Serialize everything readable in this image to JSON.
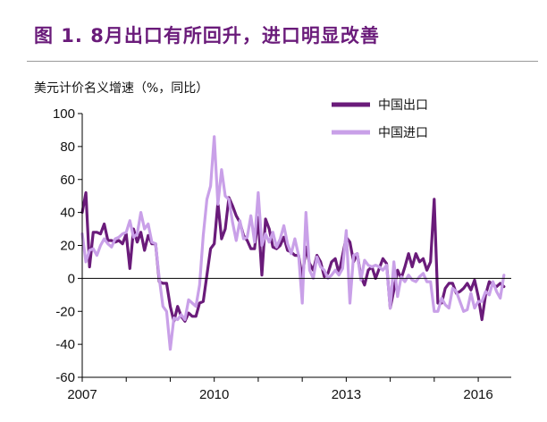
{
  "figure": {
    "title": "图 1.   8月出口有所回升，进口明显改善"
  },
  "chart_data": {
    "type": "line",
    "ylabel": "美元计价名义增速（%，同比）",
    "xlabel": "",
    "xlim": [
      2007,
      2016.75
    ],
    "ylim": [
      -60,
      100
    ],
    "yticks": [
      "100",
      "80",
      "60",
      "40",
      "20",
      "0",
      "-20",
      "-40",
      "-60"
    ],
    "xticks": [
      "2007",
      "2010",
      "2013",
      "2016"
    ],
    "grid": false,
    "legend_position": "top-right",
    "x_start": "2007-01",
    "x_step": "monthly",
    "series": [
      {
        "name": "中国出口",
        "color": "#6a1b7a",
        "values": [
          40,
          52,
          7,
          28,
          28,
          27,
          33,
          23,
          23,
          22,
          23,
          21,
          27,
          6,
          30,
          22,
          28,
          17,
          26,
          21,
          21,
          -2,
          -3,
          -3,
          -17,
          -26,
          -17,
          -23,
          -26,
          -21,
          -23,
          -23,
          -15,
          -14,
          2,
          18,
          21,
          46,
          24,
          30,
          49,
          44,
          38,
          34,
          26,
          23,
          18,
          18,
          37,
          2,
          36,
          30,
          19,
          18,
          20,
          25,
          17,
          16,
          14,
          14,
          0,
          19,
          9,
          5,
          14,
          10,
          1,
          3,
          10,
          12,
          3,
          14,
          25,
          22,
          10,
          15,
          1,
          -4,
          5,
          7,
          0,
          6,
          12,
          9,
          -18,
          -7,
          5,
          0,
          7,
          15,
          7,
          15,
          10,
          12,
          5,
          10,
          48,
          -15,
          -15,
          -6,
          -3,
          -3,
          -9,
          -8,
          -6,
          -3,
          -7,
          -1,
          -11,
          -25,
          -10,
          -2,
          -4,
          -5,
          -3,
          -5
        ]
      },
      {
        "name": "中国进口",
        "color": "#c9a0e8",
        "values": [
          27,
          10,
          17,
          18,
          14,
          20,
          24,
          21,
          19,
          24,
          25,
          27,
          28,
          35,
          25,
          27,
          40,
          30,
          33,
          22,
          21,
          0,
          -17,
          -20,
          -43,
          -24,
          -25,
          -22,
          -25,
          -13,
          -15,
          -17,
          -4,
          26,
          48,
          56,
          86,
          45,
          66,
          50,
          48,
          34,
          23,
          35,
          24,
          25,
          38,
          22,
          52,
          20,
          27,
          22,
          28,
          19,
          24,
          32,
          21,
          15,
          24,
          14,
          -15,
          40,
          5,
          0,
          13,
          7,
          5,
          0,
          2,
          5,
          2,
          6,
          29,
          -15,
          14,
          15,
          -1,
          11,
          8,
          7,
          8,
          7,
          5,
          8,
          -18,
          10,
          -11,
          1,
          -2,
          2,
          -1,
          -2,
          1,
          3,
          -2,
          -2,
          -20,
          -20,
          -12,
          -16,
          -18,
          -6,
          -8,
          -14,
          -20,
          -19,
          -9,
          -18,
          -14,
          -14,
          -8,
          -10,
          -2,
          -8,
          -12,
          2
        ]
      }
    ]
  }
}
